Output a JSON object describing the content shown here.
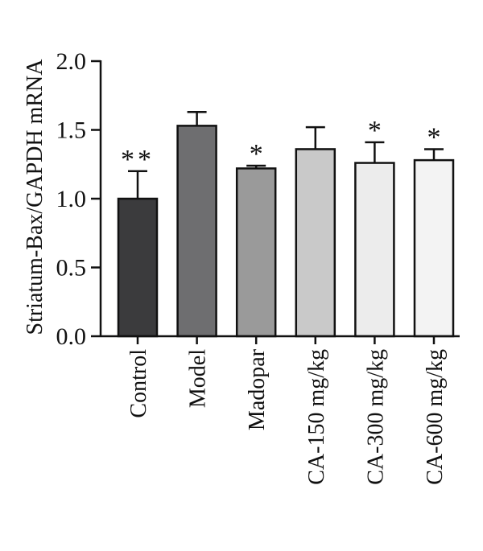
{
  "chart_data": {
    "type": "bar",
    "title": "",
    "ylabel": "Striatum-Bax/GAPDH mRNA",
    "xlabel": "",
    "ylim": [
      0.0,
      2.0
    ],
    "yticks": [
      "0.0",
      "0.5",
      "1.0",
      "1.5",
      "2.0"
    ],
    "grid": false,
    "categories": [
      "Control",
      "Model",
      "Madopar",
      "CA-150 mg/kg",
      "CA-300 mg/kg",
      "CA-600 mg/kg"
    ],
    "values": [
      1.0,
      1.53,
      1.22,
      1.36,
      1.26,
      1.28
    ],
    "errors": [
      0.2,
      0.1,
      0.02,
      0.16,
      0.15,
      0.08
    ],
    "significance": [
      "**",
      "",
      "*",
      "",
      "*",
      "*"
    ],
    "bar_colors": [
      "#3b3b3d",
      "#6e6e70",
      "#9a9a9a",
      "#c9c9c9",
      "#ececec",
      "#f3f3f3"
    ]
  }
}
